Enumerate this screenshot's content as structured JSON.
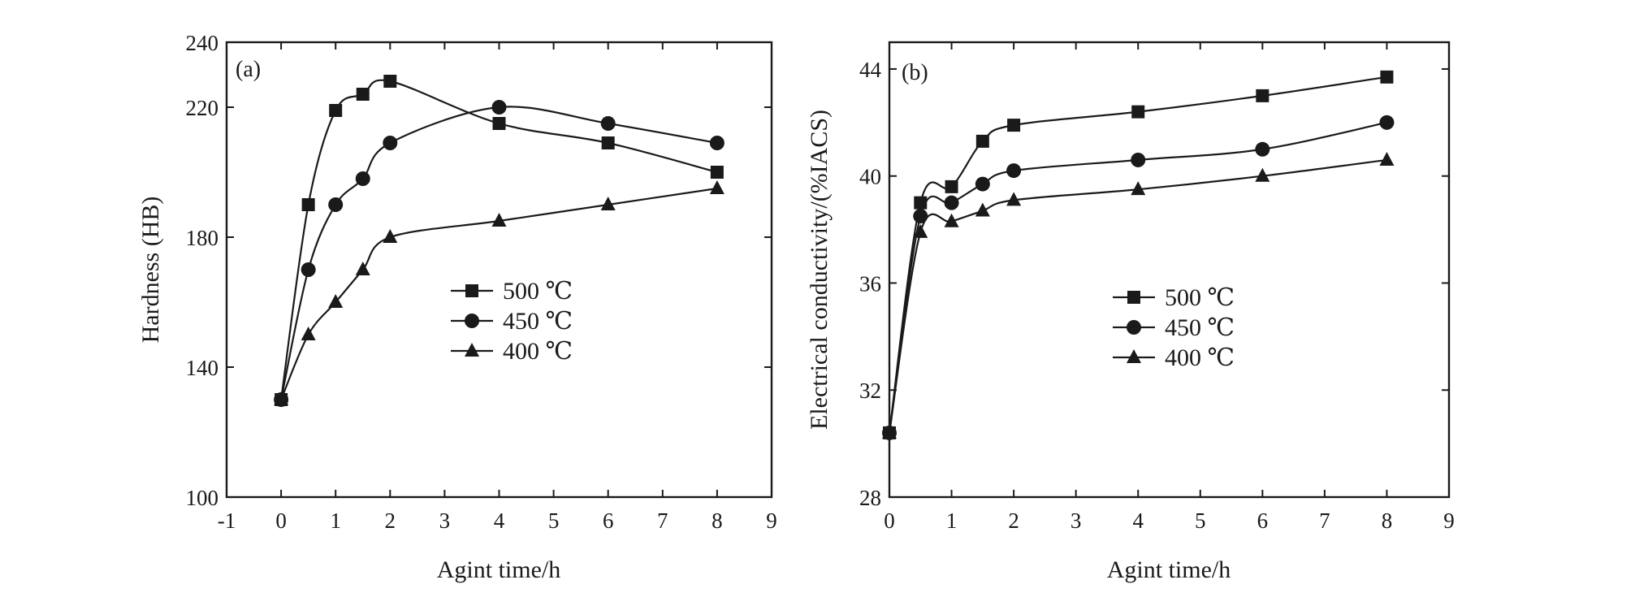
{
  "chart_data": [
    {
      "panel_label": "(a)",
      "type": "line",
      "xlabel": "Agint time/h",
      "ylabel": "Hardness (HB)",
      "xlim": [
        -1,
        9
      ],
      "ylim": [
        100,
        240
      ],
      "xticks": [
        "-1",
        "0",
        "1",
        "2",
        "3",
        "4",
        "5",
        "6",
        "7",
        "8",
        "9"
      ],
      "yticks": [
        "100",
        "140",
        "180",
        "220",
        "240"
      ],
      "legend_position": "center",
      "series": [
        {
          "name": "500 ℃",
          "marker": "square",
          "x": [
            0,
            0.5,
            1,
            1.5,
            2,
            4,
            6,
            8
          ],
          "y": [
            130,
            190,
            219,
            224,
            228,
            215,
            209,
            200
          ]
        },
        {
          "name": "450 ℃",
          "marker": "circle",
          "x": [
            0,
            0.5,
            1,
            1.5,
            2,
            4,
            6,
            8
          ],
          "y": [
            130,
            170,
            190,
            198,
            209,
            220,
            215,
            209
          ]
        },
        {
          "name": "400 ℃",
          "marker": "triangle",
          "x": [
            0,
            0.5,
            1,
            1.5,
            2,
            4,
            6,
            8
          ],
          "y": [
            130,
            150,
            160,
            170,
            180,
            185,
            190,
            195
          ]
        }
      ]
    },
    {
      "panel_label": "(b)",
      "type": "line",
      "xlabel": "Agint time/h",
      "ylabel": "Electrical conductivity/(%IACS)",
      "xlim": [
        0,
        9
      ],
      "ylim": [
        28,
        45
      ],
      "xticks": [
        "0",
        "1",
        "2",
        "3",
        "4",
        "5",
        "6",
        "7",
        "8",
        "9"
      ],
      "yticks": [
        "28",
        "32",
        "36",
        "40",
        "44"
      ],
      "legend_position": "center-left",
      "series": [
        {
          "name": "500 ℃",
          "marker": "square",
          "x": [
            0,
            0.5,
            1,
            1.5,
            2,
            4,
            6,
            8
          ],
          "y": [
            30.4,
            39.0,
            39.6,
            41.3,
            41.9,
            42.4,
            43.0,
            43.7
          ]
        },
        {
          "name": "450 ℃",
          "marker": "circle",
          "x": [
            0,
            0.5,
            1,
            1.5,
            2,
            4,
            6,
            8
          ],
          "y": [
            30.4,
            38.5,
            39.0,
            39.7,
            40.2,
            40.6,
            41.0,
            42.0
          ]
        },
        {
          "name": "400 ℃",
          "marker": "triangle",
          "x": [
            0,
            0.5,
            1,
            1.5,
            2,
            4,
            6,
            8
          ],
          "y": [
            30.4,
            37.9,
            38.3,
            38.7,
            39.1,
            39.5,
            40.0,
            40.6
          ]
        }
      ]
    }
  ]
}
